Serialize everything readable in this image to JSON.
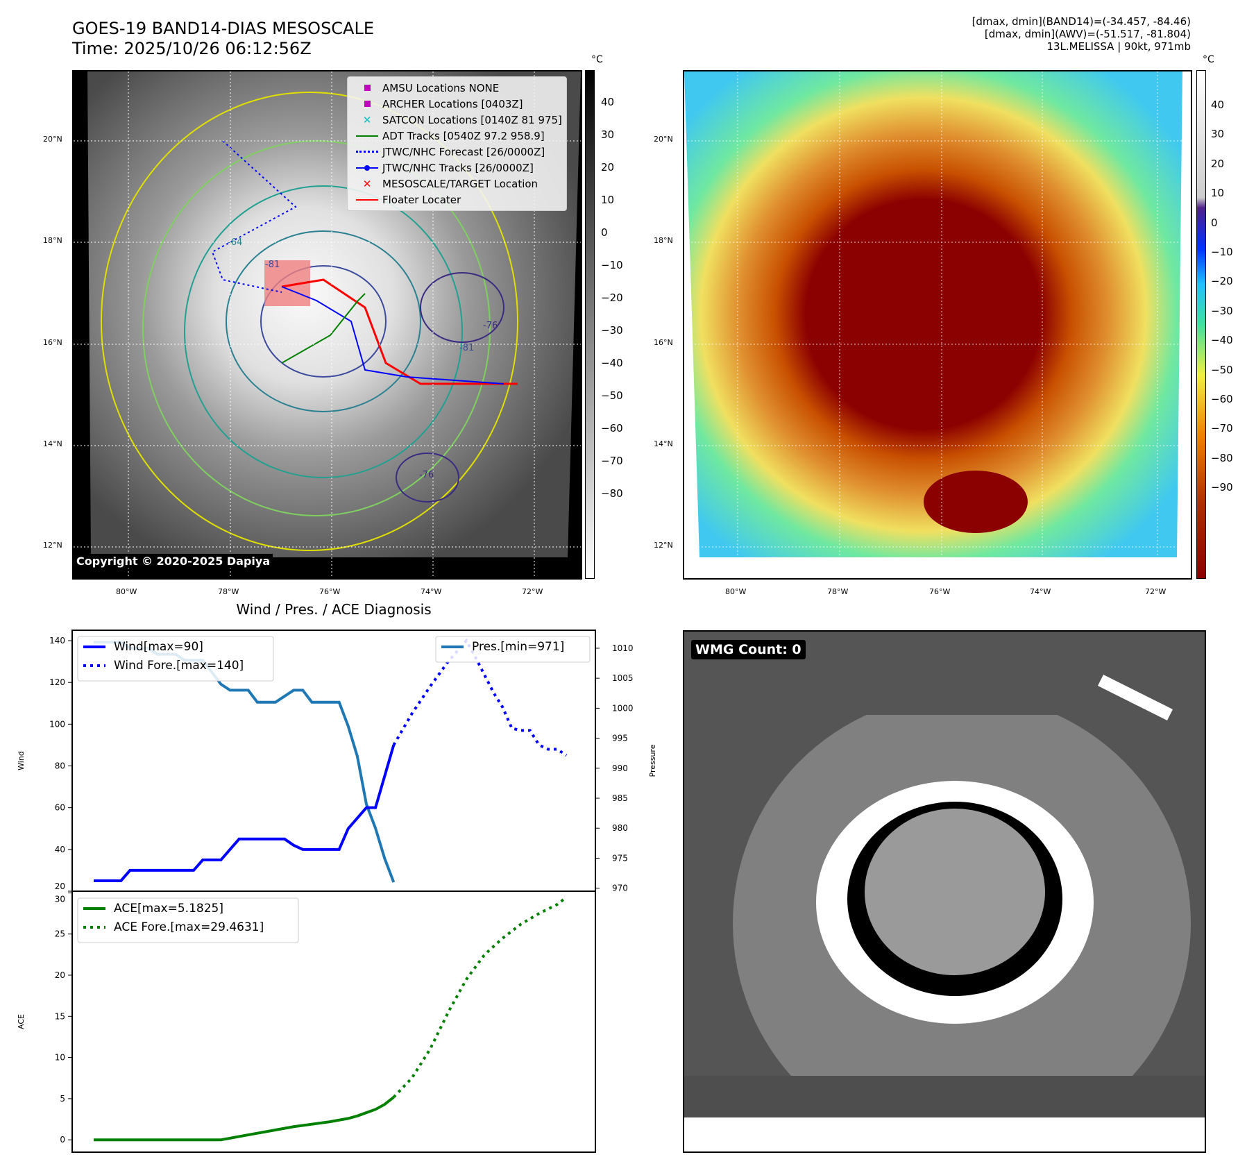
{
  "header": {
    "title": "GOES-19 BAND14-DIAS MESOSCALE",
    "time": "Time: 2025/10/26 06:12:56Z",
    "info": [
      "[dmax, dmin](BAND14)=(-34.457, -84.46)",
      "[dmax, dmin](AWV)=(-51.517, -81.804)",
      "13L.MELISSA | 90kt, 971mb"
    ]
  },
  "ir_map": {
    "unit": "°C",
    "colorbar_ticks": [
      "40",
      "30",
      "20",
      "10",
      "0",
      "−10",
      "−20",
      "−30",
      "−40",
      "−50",
      "−60",
      "−70",
      "−80"
    ],
    "lat_ticks": [
      "20°N",
      "18°N",
      "16°N",
      "14°N",
      "12°N"
    ],
    "lon_ticks": [
      "80°W",
      "78°W",
      "76°W",
      "74°W",
      "72°W"
    ],
    "contour_labels": [
      "-64",
      "-81",
      "-81",
      "-76",
      "-76"
    ],
    "copyright": "Copyright © 2020-2025 Dapiya",
    "legend": [
      {
        "label": "AMSU Locations NONE",
        "symbol": "square",
        "color": "#c000c0"
      },
      {
        "label": "ARCHER Locations [0403Z]",
        "symbol": "square",
        "color": "#c000c0"
      },
      {
        "label": "SATCON Locations [0140Z 81 975]",
        "symbol": "x",
        "color": "#00c0c0"
      },
      {
        "label": "ADT Tracks [0540Z 97.2 958.9]",
        "symbol": "line",
        "color": "#008000"
      },
      {
        "label": "JTWC/NHC Forecast [26/0000Z]",
        "symbol": "dotted",
        "color": "#0000ff"
      },
      {
        "label": "JTWC/NHC Tracks [26/0000Z]",
        "symbol": "line-dot",
        "color": "#0000ff"
      },
      {
        "label": "MESOSCALE/TARGET Location",
        "symbol": "x",
        "color": "#ff0000"
      },
      {
        "label": "Floater Locater",
        "symbol": "line",
        "color": "#ff0000"
      }
    ]
  },
  "awv_map": {
    "unit": "°C",
    "colorbar_ticks": [
      "40",
      "30",
      "20",
      "10",
      "0",
      "−10",
      "−20",
      "−30",
      "−40",
      "−50",
      "−60",
      "−70",
      "−80",
      "−90"
    ],
    "lat_ticks": [
      "20°N",
      "18°N",
      "16°N",
      "14°N",
      "12°N"
    ],
    "lon_ticks": [
      "80°W",
      "78°W",
      "76°W",
      "74°W",
      "72°W"
    ]
  },
  "wmg_panel": {
    "label": "WMG Count: 0"
  },
  "chart_data": [
    {
      "type": "line",
      "title": "Wind / Pres. / ACE Diagnosis",
      "xlabel": "",
      "ylabel": "Wind",
      "y2label": "Pressure",
      "ylim": [
        20,
        145
      ],
      "y2lim": [
        969.5,
        1013
      ],
      "yticks": [
        "20",
        "40",
        "60",
        "80",
        "100",
        "120",
        "140"
      ],
      "y2ticks": [
        "970",
        "975",
        "980",
        "985",
        "990",
        "995",
        "1000",
        "1005",
        "1010"
      ],
      "legend": [
        "Wind[max=90]",
        "Wind Fore.[max=140]"
      ],
      "legend2": [
        "Pres.[min=971]"
      ],
      "series": [
        {
          "name": "Wind",
          "style": "solid",
          "color": "#0000ff",
          "axis": "left",
          "x": [
            0,
            1,
            2,
            3,
            4,
            5,
            6,
            7,
            8,
            9,
            10,
            11,
            12,
            13,
            14,
            15,
            16,
            17,
            18,
            19,
            20,
            21,
            22,
            23,
            24,
            25,
            26,
            27,
            28,
            29,
            30,
            31,
            32,
            33
          ],
          "values": [
            25,
            25,
            25,
            25,
            30,
            30,
            30,
            30,
            30,
            30,
            30,
            30,
            35,
            35,
            35,
            40,
            45,
            45,
            45,
            45,
            45,
            45,
            42,
            40,
            40,
            40,
            40,
            40,
            50,
            55,
            60,
            60,
            75,
            90
          ]
        },
        {
          "name": "Wind Fore.",
          "style": "dotted",
          "color": "#0000ff",
          "axis": "left",
          "x": [
            33,
            35,
            37,
            39,
            41,
            42,
            44,
            45,
            46,
            47,
            48,
            49,
            50,
            51,
            52
          ],
          "values": [
            90,
            105,
            118,
            130,
            140,
            132,
            115,
            108,
            98,
            97,
            97,
            90,
            88,
            88,
            85
          ]
        },
        {
          "name": "Pres.",
          "style": "solid",
          "color": "#1f77b4",
          "axis": "right",
          "x": [
            0,
            1,
            2,
            3,
            4,
            5,
            6,
            7,
            8,
            9,
            10,
            11,
            12,
            13,
            14,
            15,
            16,
            17,
            18,
            19,
            20,
            21,
            22,
            23,
            24,
            25,
            26,
            27,
            28,
            29,
            30,
            31,
            32,
            33
          ],
          "values": [
            1011,
            1011,
            1011,
            1011,
            1010,
            1010,
            1010,
            1009,
            1009,
            1009,
            1008,
            1008,
            1008,
            1006,
            1004,
            1003,
            1003,
            1003,
            1001,
            1001,
            1001,
            1002,
            1003,
            1003,
            1001,
            1001,
            1001,
            1001,
            997,
            992,
            984,
            980,
            975,
            971
          ]
        }
      ]
    },
    {
      "type": "line",
      "title": "",
      "xlabel": "",
      "ylabel": "ACE",
      "ylim": [
        -1.5,
        30.2
      ],
      "yticks": [
        "0",
        "5",
        "10",
        "15",
        "20",
        "25",
        "30"
      ],
      "legend": [
        "ACE[max=5.1825]",
        "ACE Fore.[max=29.4631]"
      ],
      "series": [
        {
          "name": "ACE",
          "style": "solid",
          "color": "#008000",
          "x": [
            0,
            14,
            16,
            18,
            20,
            22,
            24,
            26,
            28,
            29,
            30,
            31,
            32,
            33
          ],
          "values": [
            0,
            0,
            0.4,
            0.8,
            1.2,
            1.6,
            1.9,
            2.2,
            2.6,
            2.9,
            3.3,
            3.7,
            4.3,
            5.18
          ]
        },
        {
          "name": "ACE Fore.",
          "style": "dotted",
          "color": "#008000",
          "x": [
            33,
            35,
            37,
            39,
            41,
            43,
            45,
            47,
            49,
            51,
            52
          ],
          "values": [
            5.18,
            7.5,
            11,
            15.5,
            19.5,
            22.5,
            24.5,
            26.2,
            27.5,
            28.6,
            29.46
          ]
        }
      ]
    }
  ]
}
